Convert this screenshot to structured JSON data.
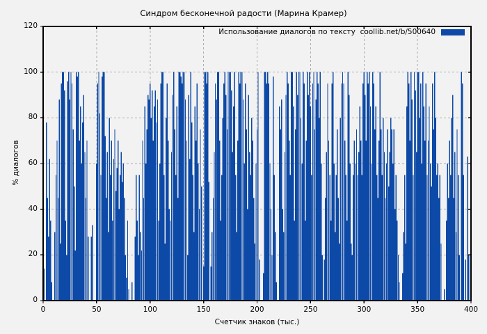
{
  "page": {
    "background": "#f2f2f2"
  },
  "chart_data": {
    "type": "bar",
    "title": "Синдром бесконечной радости (Марина Крамер)",
    "legend": {
      "label": "Использование диалогов по тексту  coollib.net/b/500640",
      "position": "top-right"
    },
    "xlabel": "Счетчик знаков (тыс.)",
    "ylabel": "% диалогов",
    "xlim": [
      0,
      400
    ],
    "ylim": [
      0,
      120
    ],
    "x_ticks": [
      0,
      50,
      100,
      150,
      200,
      250,
      300,
      350,
      400
    ],
    "y_ticks": [
      0,
      20,
      40,
      60,
      80,
      100,
      120
    ],
    "grid": true,
    "x_start": 0,
    "x_step": 1,
    "colors": {
      "bar": "#0d49a6",
      "grid": "#ababab",
      "border": "#000000",
      "background": "#f2f2f2"
    },
    "values": [
      20,
      14,
      0,
      78,
      45,
      28,
      62,
      35,
      8,
      0,
      0,
      30,
      55,
      70,
      45,
      88,
      25,
      95,
      100,
      100,
      92,
      35,
      20,
      96,
      100,
      88,
      100,
      95,
      75,
      50,
      22,
      100,
      98,
      100,
      70,
      85,
      60,
      78,
      90,
      65,
      45,
      70,
      28,
      0,
      0,
      28,
      33,
      0,
      0,
      0,
      60,
      95,
      100,
      82,
      55,
      98,
      100,
      100,
      72,
      45,
      65,
      30,
      80,
      55,
      70,
      35,
      62,
      75,
      48,
      58,
      70,
      40,
      55,
      65,
      52,
      60,
      45,
      20,
      10,
      35,
      5,
      0,
      0,
      8,
      0,
      0,
      28,
      55,
      35,
      20,
      55,
      30,
      22,
      70,
      45,
      85,
      60,
      75,
      90,
      88,
      95,
      80,
      92,
      70,
      85,
      92,
      78,
      88,
      35,
      60,
      95,
      100,
      100,
      55,
      25,
      80,
      95,
      70,
      40,
      35,
      65,
      90,
      100,
      75,
      55,
      85,
      45,
      100,
      100,
      98,
      95,
      100,
      100,
      88,
      70,
      20,
      90,
      62,
      100,
      78,
      55,
      30,
      85,
      70,
      95,
      60,
      40,
      75,
      50,
      0,
      15,
      100,
      100,
      95,
      100,
      52,
      0,
      15,
      30,
      45,
      65,
      95,
      88,
      100,
      100,
      70,
      35,
      55,
      80,
      95,
      100,
      90,
      75,
      100,
      100,
      100,
      92,
      65,
      85,
      100,
      55,
      30,
      70,
      100,
      95,
      100,
      100,
      88,
      60,
      95,
      75,
      40,
      90,
      65,
      55,
      80,
      70,
      45,
      25,
      60,
      75,
      100,
      18,
      0,
      0,
      0,
      12,
      100,
      100,
      95,
      100,
      95,
      60,
      40,
      20,
      98,
      55,
      30,
      8,
      0,
      0,
      85,
      75,
      88,
      40,
      30,
      65,
      90,
      100,
      95,
      70,
      55,
      100,
      100,
      85,
      35,
      75,
      100,
      90,
      100,
      100,
      80,
      60,
      100,
      95,
      35,
      70,
      100,
      90,
      100,
      85,
      55,
      95,
      100,
      75,
      88,
      100,
      95,
      80,
      100,
      60,
      20,
      0,
      18,
      45,
      65,
      95,
      70,
      55,
      35,
      95,
      100,
      60,
      30,
      55,
      75,
      45,
      25,
      80,
      95,
      100,
      95,
      70,
      55,
      35,
      100,
      90,
      60,
      25,
      20,
      55,
      70,
      60,
      75,
      55,
      65,
      85,
      70,
      55,
      95,
      100,
      90,
      70,
      100,
      95,
      100,
      85,
      60,
      100,
      95,
      75,
      85,
      55,
      45,
      70,
      100,
      75,
      55,
      80,
      65,
      45,
      60,
      75,
      50,
      65,
      80,
      75,
      60,
      75,
      40,
      55,
      35,
      20,
      8,
      0,
      0,
      12,
      30,
      55,
      25,
      85,
      100,
      95,
      70,
      100,
      88,
      55,
      100,
      92,
      65,
      100,
      100,
      80,
      95,
      60,
      100,
      85,
      70,
      95,
      55,
      70,
      85,
      60,
      50,
      95,
      75,
      100,
      80,
      55,
      60,
      45,
      55,
      25,
      0,
      0,
      5,
      0,
      35,
      60,
      45,
      70,
      55,
      80,
      90,
      45,
      65,
      30,
      75,
      55,
      20,
      0,
      100,
      95,
      55,
      0,
      18,
      0,
      63,
      20,
      0
    ]
  }
}
